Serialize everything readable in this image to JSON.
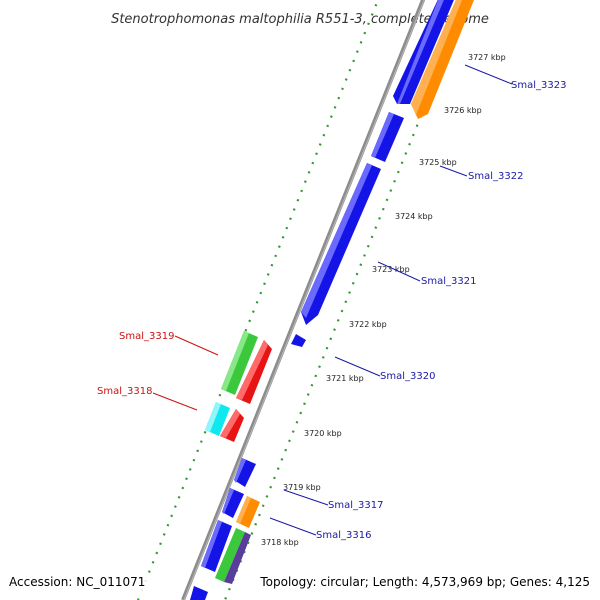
{
  "title": "Stenotrophomonas maltophilia R551-3, complete genome",
  "footer": {
    "accession": "Accession: NC_011071",
    "topology": "Topology: circular; Length: 4,573,969 bp; Genes: 4,125"
  },
  "colors": {
    "backbone": "#8c8c8c",
    "tick": "#1e8c1e",
    "forward_gene": "#1414e6",
    "reverse_gene_red": "#e61414",
    "reverse_gene_green": "#3cc83c",
    "reverse_gene_cyan": "#10e8f0",
    "orange_gene": "#ff8c00",
    "blue_label": "#1a1aa6",
    "red_label": "#cc1111"
  },
  "kbp_labels": [
    "3727 kbp",
    "3726 kbp",
    "3725 kbp",
    "3724 kbp",
    "3723 kbp",
    "3722 kbp",
    "3721 kbp",
    "3720 kbp",
    "3719 kbp",
    "3718 kbp"
  ],
  "gene_labels": {
    "smal_3323": "Smal_3323",
    "smal_3322": "Smal_3322",
    "smal_3321": "Smal_3321",
    "smal_3320": "Smal_3320",
    "smal_3319": "Smal_3319",
    "smal_3318": "Smal_3318",
    "smal_3317": "Smal_3317",
    "smal_3316": "Smal_3316"
  }
}
